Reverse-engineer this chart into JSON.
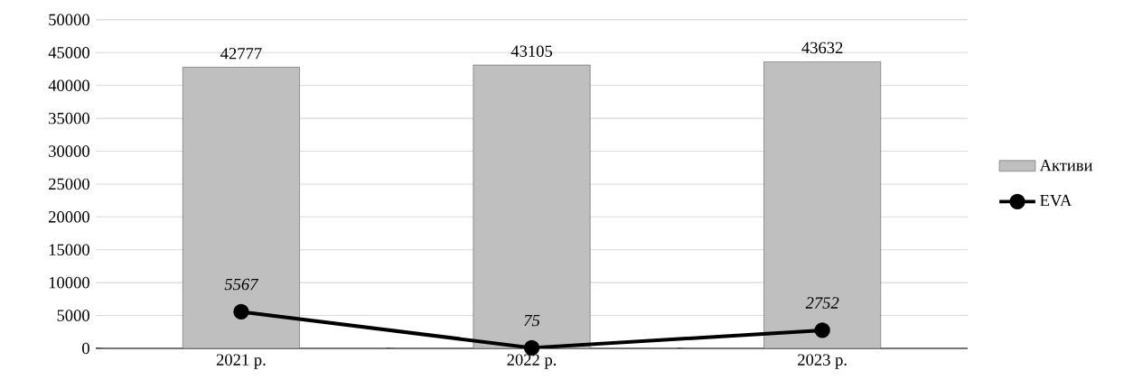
{
  "chart_data": {
    "type": "bar",
    "categories": [
      "2021 р.",
      "2022 р.",
      "2023 р."
    ],
    "series": [
      {
        "name": "Активи",
        "color": "#bfbfbf",
        "values": [
          42777,
          43105,
          43632
        ]
      },
      {
        "name": "EVA",
        "type": "line",
        "color": "#000000",
        "values": [
          5567,
          75,
          2752
        ]
      }
    ],
    "ylim": [
      0,
      50000
    ],
    "yticks": [
      0,
      5000,
      10000,
      15000,
      20000,
      25000,
      30000,
      35000,
      40000,
      45000,
      50000
    ],
    "grid": "y",
    "legend": "right",
    "marker": "circle",
    "data_labels": true
  }
}
